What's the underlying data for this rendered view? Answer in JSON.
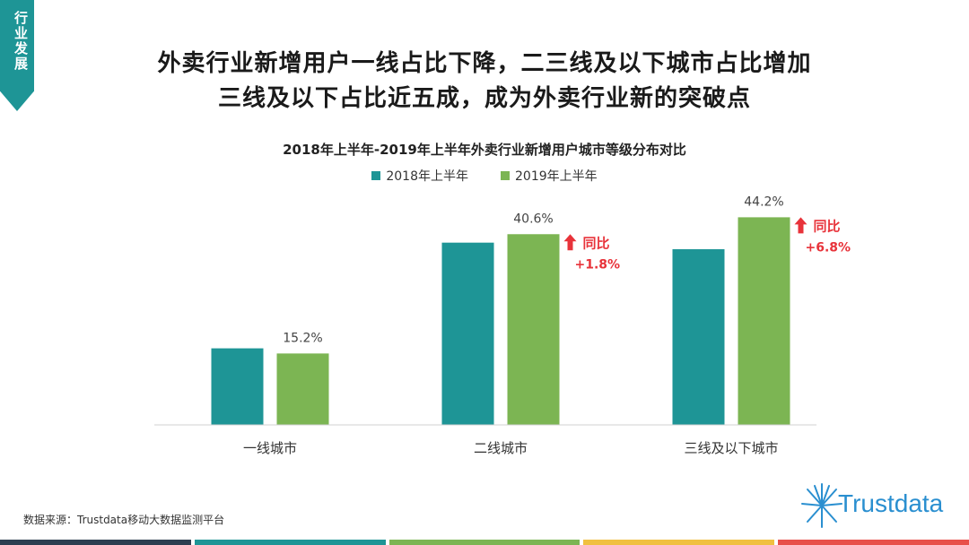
{
  "side_tab": {
    "label": "行业发展"
  },
  "headline": {
    "line1": "外卖行业新增用户一线占比下降，二三线及以下城市占比增加",
    "line2": "三线及以下占比近五成，成为外卖行业新的突破点"
  },
  "source": "数据来源：Trustdata移动大数据监测平台",
  "logo": {
    "text": "Trustdata"
  },
  "colors": {
    "s2018": "#1e9596",
    "s2019": "#7cb553",
    "annotation": "#e8333a",
    "bars": [
      "#2c3e50",
      "#1e9596",
      "#7cb553",
      "#f0c040",
      "#e8504a"
    ]
  },
  "chart_data": {
    "type": "bar",
    "title": "2018年上半年-2019年上半年外卖行业新增用户城市等级分布对比",
    "categories": [
      "一线城市",
      "二线城市",
      "三线及以下城市"
    ],
    "series": [
      {
        "name": "2018年上半年",
        "values": [
          16.3,
          38.8,
          37.4
        ]
      },
      {
        "name": "2019年上半年",
        "values": [
          15.2,
          40.6,
          44.2
        ]
      }
    ],
    "data_labels": [
      "15.2%",
      "40.6%",
      "44.2%"
    ],
    "annotations": [
      {
        "category": "二线城市",
        "label": "同比",
        "value": "+1.8%"
      },
      {
        "category": "三线及以下城市",
        "label": "同比",
        "value": "+6.8%"
      }
    ],
    "ylim": [
      0,
      50
    ],
    "legend": "top-center",
    "grid": false
  }
}
